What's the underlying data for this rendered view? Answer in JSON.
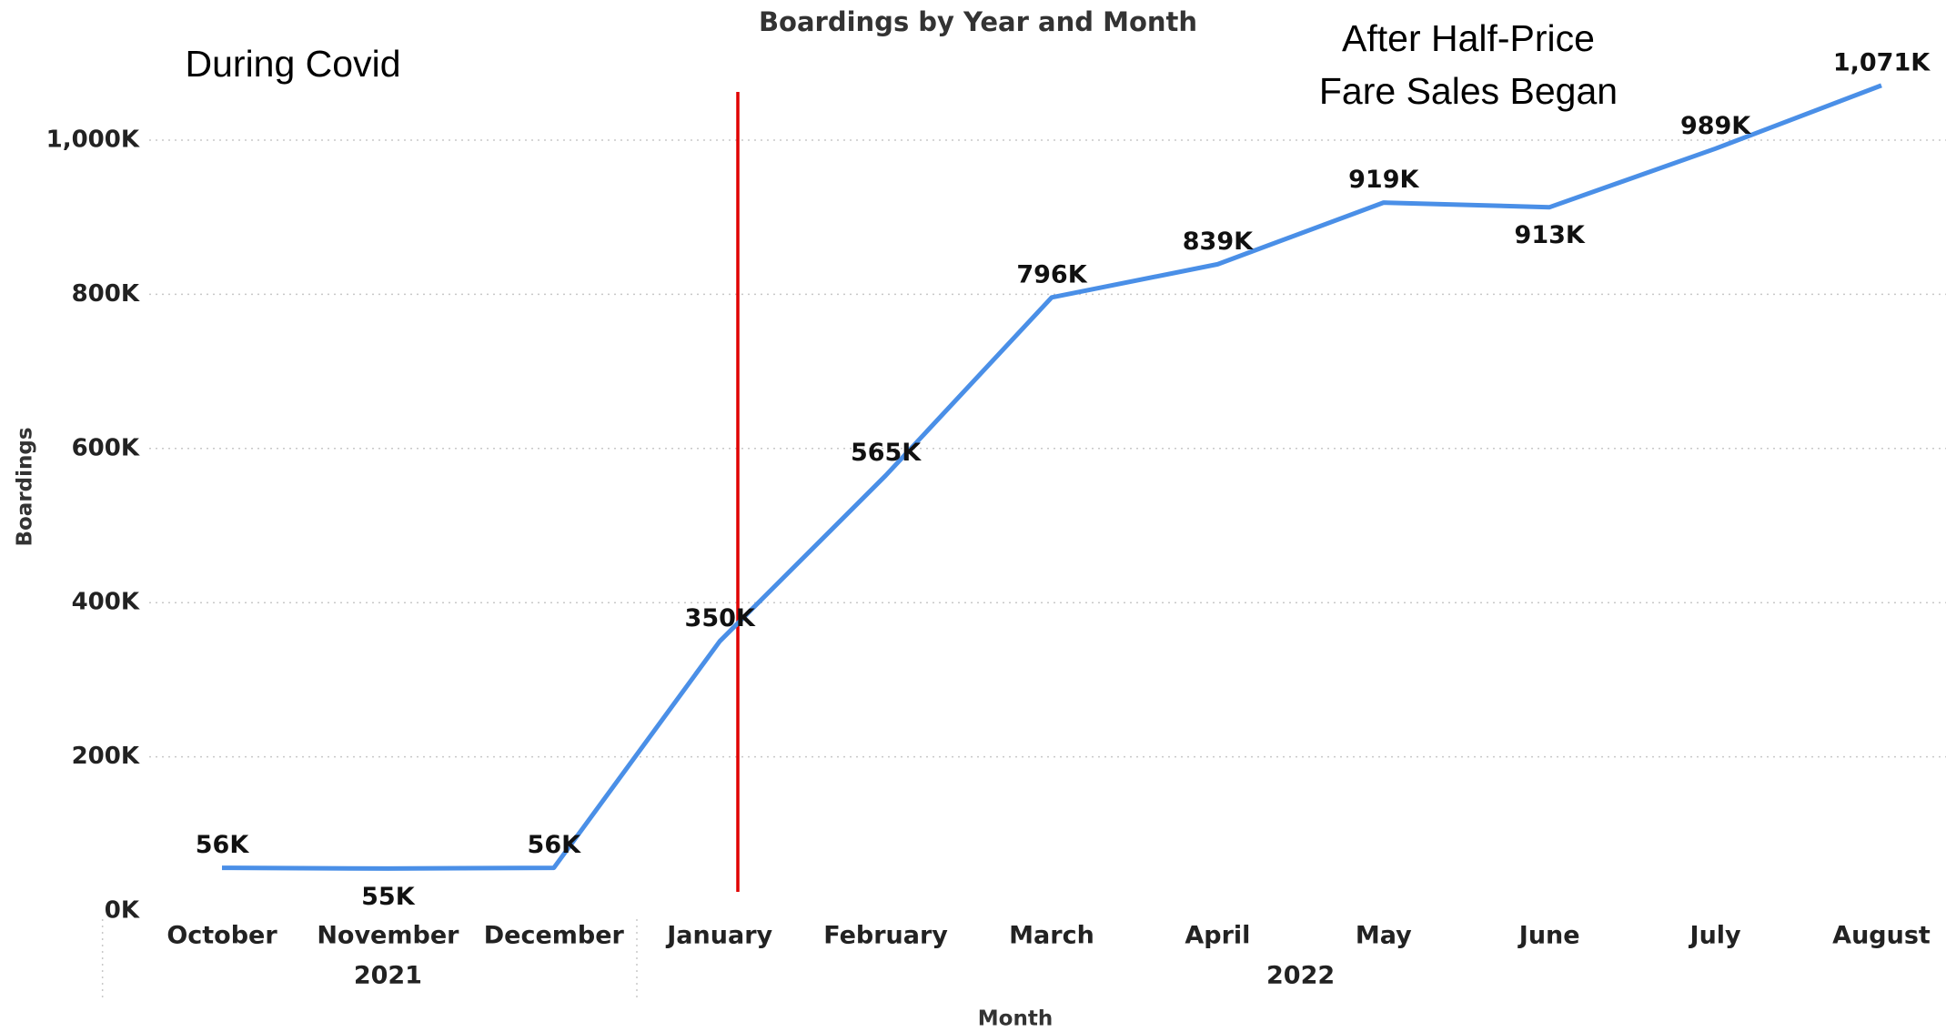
{
  "chart_data": {
    "type": "line",
    "title": "Boardings by Year and Month",
    "x_label": "Month",
    "y_label": "Boardings",
    "categories": [
      "October",
      "November",
      "December",
      "January",
      "February",
      "March",
      "April",
      "May",
      "June",
      "July",
      "August"
    ],
    "year_groups": [
      {
        "label": "2021",
        "count": 3
      },
      {
        "label": "2022",
        "count": 8
      }
    ],
    "series": [
      {
        "name": "Boardings",
        "color": "#4a8fe7",
        "values": [
          56000,
          55000,
          56000,
          350000,
          565000,
          796000,
          839000,
          919000,
          913000,
          989000,
          1071000
        ],
        "value_labels": [
          "56K",
          "55K",
          "56K",
          "350K",
          "565K",
          "796K",
          "839K",
          "919K",
          "913K",
          "989K",
          "1,071K"
        ]
      }
    ],
    "ylim": [
      0,
      1000000
    ],
    "yticks": [
      {
        "value": 0,
        "label": "0K"
      },
      {
        "value": 200000,
        "label": "200K"
      },
      {
        "value": 400000,
        "label": "400K"
      },
      {
        "value": 600000,
        "label": "600K"
      },
      {
        "value": 800000,
        "label": "800K"
      },
      {
        "value": 1000000,
        "label": "1,000K"
      }
    ],
    "grid": true,
    "annotations": [
      "During Covid",
      "After Half-Price",
      "Fare Sales Began"
    ]
  }
}
